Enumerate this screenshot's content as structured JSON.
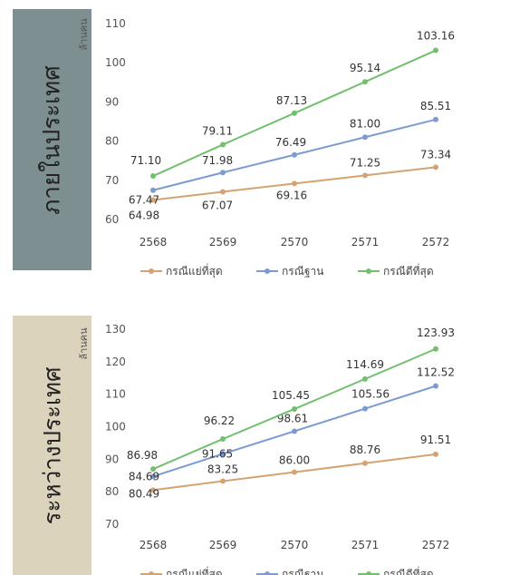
{
  "chart_data": [
    {
      "type": "line",
      "side_label": "ภายในประเทศ",
      "ylabel": "ล้านคน",
      "categories": [
        "2568",
        "2569",
        "2570",
        "2571",
        "2572"
      ],
      "ylim": [
        60,
        110
      ],
      "yticks": [
        60,
        70,
        80,
        90,
        100,
        110
      ],
      "grid": false,
      "legend_position": "bottom",
      "series": [
        {
          "name": "กรณีแย่ที่สุด",
          "color": "#d4a373",
          "values": [
            64.98,
            67.07,
            69.16,
            71.25,
            73.34
          ]
        },
        {
          "name": "กรณีฐาน",
          "color": "#7b9bd1",
          "values": [
            67.47,
            71.98,
            76.49,
            81.0,
            85.51
          ]
        },
        {
          "name": "กรณีดีที่สุด",
          "color": "#72c06d",
          "values": [
            71.1,
            79.11,
            87.13,
            95.14,
            103.16
          ]
        }
      ]
    },
    {
      "type": "line",
      "side_label": "ระหว่างประเทศ",
      "ylabel": "ล้านคน",
      "categories": [
        "2568",
        "2569",
        "2570",
        "2571",
        "2572"
      ],
      "ylim": [
        70,
        130
      ],
      "yticks": [
        70,
        80,
        90,
        100,
        110,
        120,
        130
      ],
      "grid": false,
      "legend_position": "bottom",
      "series": [
        {
          "name": "กรณีแย่ที่สุด",
          "color": "#d4a373",
          "values": [
            80.49,
            83.25,
            86.0,
            88.76,
            91.51
          ]
        },
        {
          "name": "กรณีฐาน",
          "color": "#7b9bd1",
          "values": [
            84.69,
            91.65,
            98.61,
            105.56,
            112.52
          ]
        },
        {
          "name": "กรณีดีที่สุด",
          "color": "#72c06d",
          "values": [
            86.98,
            96.22,
            105.45,
            114.69,
            123.93
          ]
        }
      ]
    }
  ]
}
